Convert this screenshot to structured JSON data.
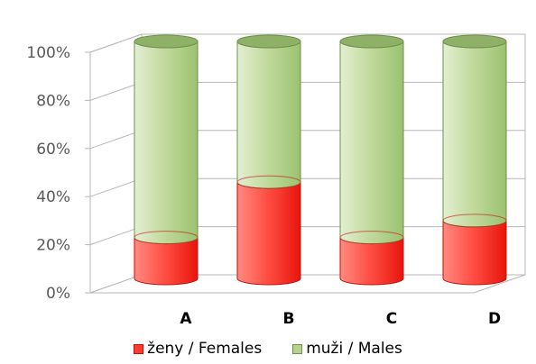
{
  "chart_data": {
    "type": "bar",
    "stacked": true,
    "percent": true,
    "style": "3d-cylinder",
    "categories": [
      "A",
      "B",
      "C",
      "D"
    ],
    "series": [
      {
        "name": "ženy / Females",
        "values": [
          17,
          40,
          17,
          24
        ],
        "color": "#ff3b30"
      },
      {
        "name": "muži / Males",
        "values": [
          83,
          60,
          83,
          76
        ],
        "color": "#9bc270"
      }
    ],
    "ylim": [
      0,
      100
    ],
    "yticks": [
      "0%",
      "20%",
      "40%",
      "60%",
      "80%",
      "100%"
    ],
    "grid": true,
    "legend_position": "bottom",
    "title": "",
    "xlabel": "",
    "ylabel": ""
  }
}
